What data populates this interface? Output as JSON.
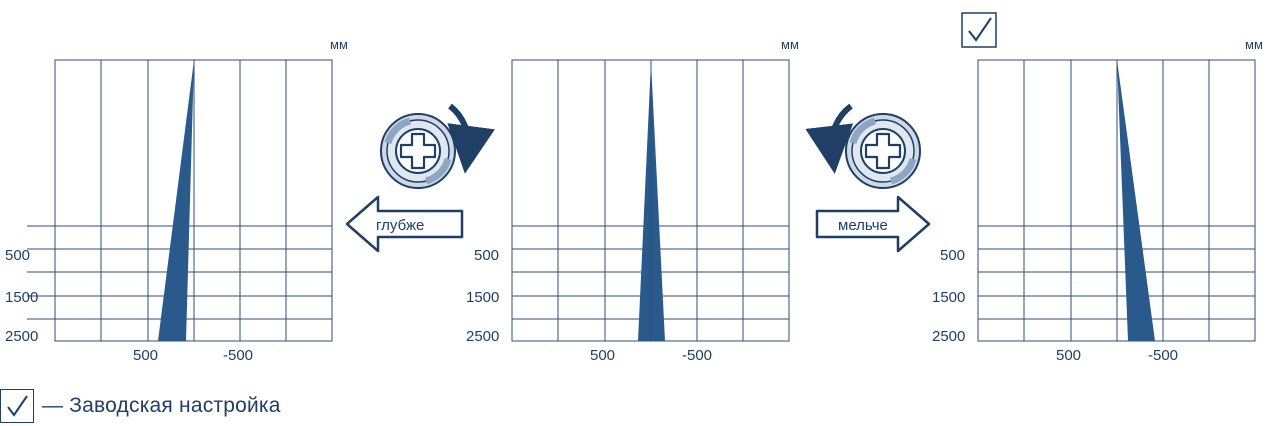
{
  "unit_label": "мм",
  "y_ticks": [
    "500",
    "1500",
    "2500"
  ],
  "x_ticks": [
    "500",
    "-500"
  ],
  "actions": {
    "deeper_label": "глубже",
    "shallower_label": "мельче"
  },
  "legend": {
    "text": "— Заводская настройка"
  },
  "colors": {
    "ink": "#1f3f66",
    "beam": "#2a5a8c",
    "grid": "#2d4f7a"
  },
  "panels": [
    {
      "name": "deeper-setting",
      "factory_default": false
    },
    {
      "name": "middle-setting",
      "factory_default": false
    },
    {
      "name": "shallower-setting",
      "factory_default": true
    }
  ]
}
